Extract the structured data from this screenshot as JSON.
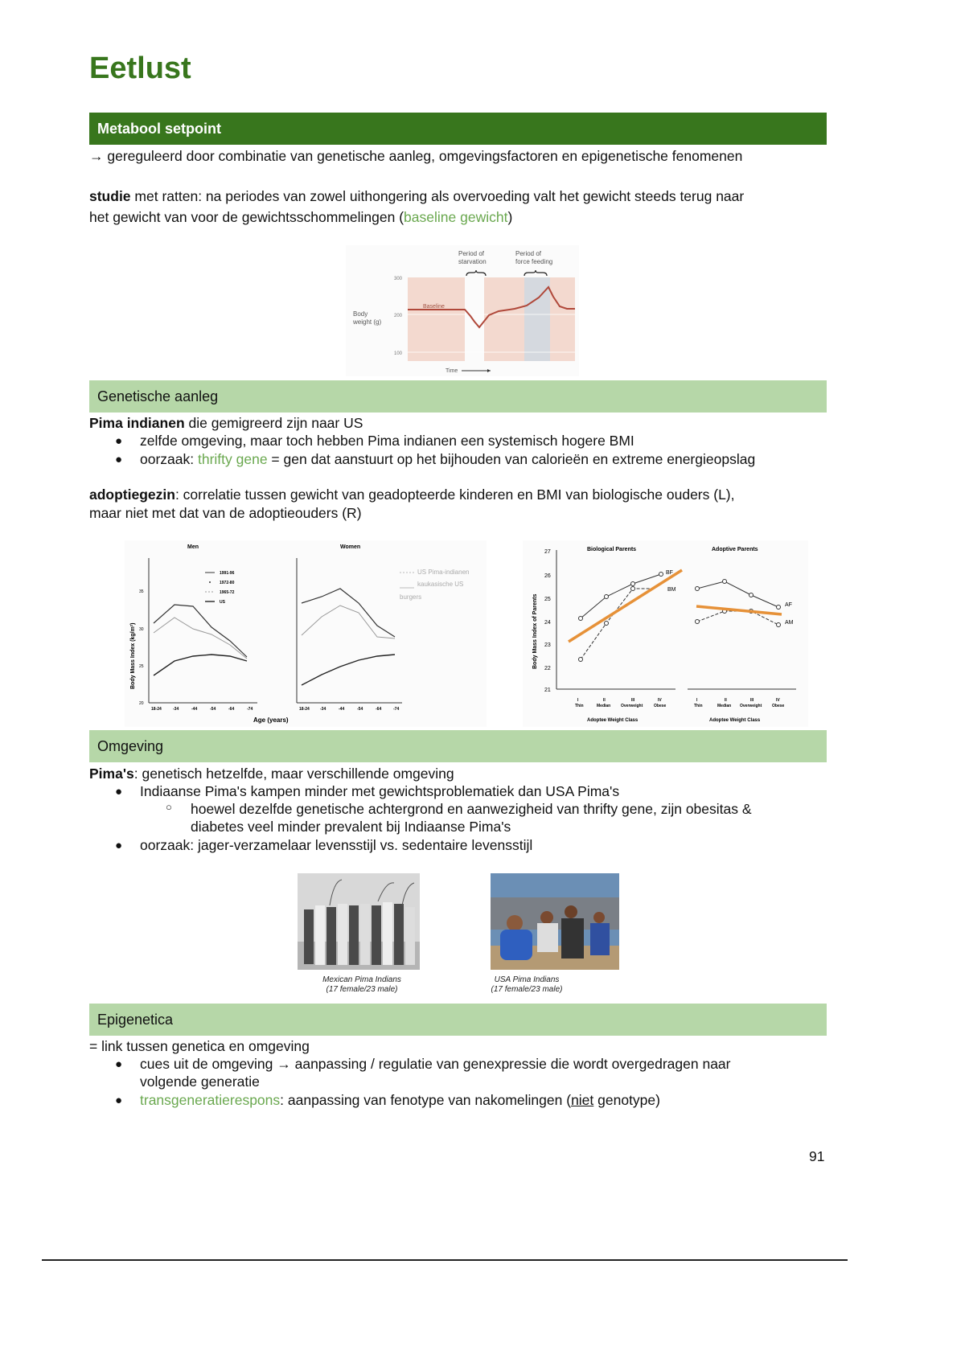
{
  "title": "Eetlust",
  "sections": {
    "metabool": {
      "header": "Metabool setpoint",
      "line1": "→ gereguleerd door combinatie van genetische aanleg, omgevingsfactoren en epigenetische fenomenen",
      "studie_bold": "studie",
      "studie_text": " met ratten: na periodes van zowel uithongering als overvoeding valt het gewicht steeds terug naar",
      "studie_line2": "het gewicht van voor de gewichtsschommelingen (",
      "studie_green": "baseline gewicht",
      "studie_end": ")"
    },
    "genetisch": {
      "header": "Genetische aanleg",
      "pima_bold": "Pima indianen",
      "pima_text": " die gemigreerd zijn naar US",
      "bullet1": "zelfde omgeving, maar toch hebben Pima indianen een systemisch hogere BMI",
      "bullet2_pre": "oorzaak: ",
      "bullet2_green": "thrifty gene",
      "bullet2_post": " = gen dat aanstuurt op het bijhouden van calorieën en extreme energieopslag",
      "adoptie_bold": "adoptiegezin",
      "adoptie_text": ": correlatie tussen gewicht van geadopteerde kinderen en BMI van biologische ouders (L),",
      "adoptie_line2": "maar niet met dat van de adoptieouders (R)"
    },
    "omgeving": {
      "header": "Omgeving",
      "pima_bold": "Pima's",
      "pima_text": ": genetisch hetzelfde, maar verschillende omgeving",
      "bullet1": "Indiaanse Pima's kampen minder met gewichtsproblematiek dan USA Pima's",
      "sub1_line1": "hoewel dezelfde genetische achtergrond en aanwezigheid van thrifty gene, zijn obesitas &",
      "sub1_line2": "diabetes veel minder prevalent bij Indiaanse Pima's",
      "bullet2": "oorzaak: jager-verzamelaar levensstijl vs. sedentaire levensstijl",
      "photo1_caption1": "Mexican Pima Indians",
      "photo1_caption2": "(17 female/23 male)",
      "photo2_caption1": "USA Pima Indians",
      "photo2_caption2": "(17 female/23 male)"
    },
    "epigenetica": {
      "header": "Epigenetica",
      "line1": "= link tussen genetica en omgeving",
      "bullet1_line1": "cues uit de omgeving → aanpassing / regulatie van genexpressie die wordt overgedragen naar",
      "bullet1_line2": "volgende generatie",
      "bullet2_green": "transgeneratierespons",
      "bullet2_text": ": aanpassing van fenotype van nakomelingen (",
      "bullet2_underline": "niet",
      "bullet2_end": " genotype)"
    }
  },
  "figure_weight": {
    "period1": [
      "Period of",
      "starvation"
    ],
    "period2": [
      "Period of",
      "force feeding"
    ],
    "ylabel": [
      "Body",
      "weight (g)"
    ],
    "yticks": [
      "300",
      "200",
      "100"
    ],
    "baseline": "Baseline",
    "xlabel": "Time"
  },
  "figure_pima": {
    "panel_left": "Men",
    "panel_right": "Women",
    "ylabel": "Body Mass Index (kg/m²)",
    "yticks": [
      "35",
      "30",
      "25",
      "20"
    ],
    "xticks": [
      "18-24",
      "-34",
      "-44",
      "-54",
      "-64",
      "-74"
    ],
    "xlabel": "Age (years)",
    "legend": [
      "1991-96",
      "1972-80",
      "1965-72",
      "US"
    ],
    "annotation1": "US Pima-indianen",
    "annotation2": "kaukasische US",
    "annotation3": "burgers"
  },
  "figure_adoption": {
    "panel_left": "Biological Parents",
    "panel_right": "Adoptive Parents",
    "ylabel": "Body Mass Index of Parents",
    "yticks": [
      "27",
      "26",
      "25",
      "24",
      "23",
      "22",
      "21"
    ],
    "xticks_roman": [
      "I",
      "II",
      "III",
      "IV"
    ],
    "xticks": [
      "Thin",
      "Median",
      "Overweight",
      "Obese"
    ],
    "xlabel": "Adoptee Weight Class",
    "labels_left": [
      "BF",
      "BM"
    ],
    "labels_right": [
      "AF",
      "AM"
    ],
    "trend_color": "#e69138"
  },
  "page_number": "91"
}
